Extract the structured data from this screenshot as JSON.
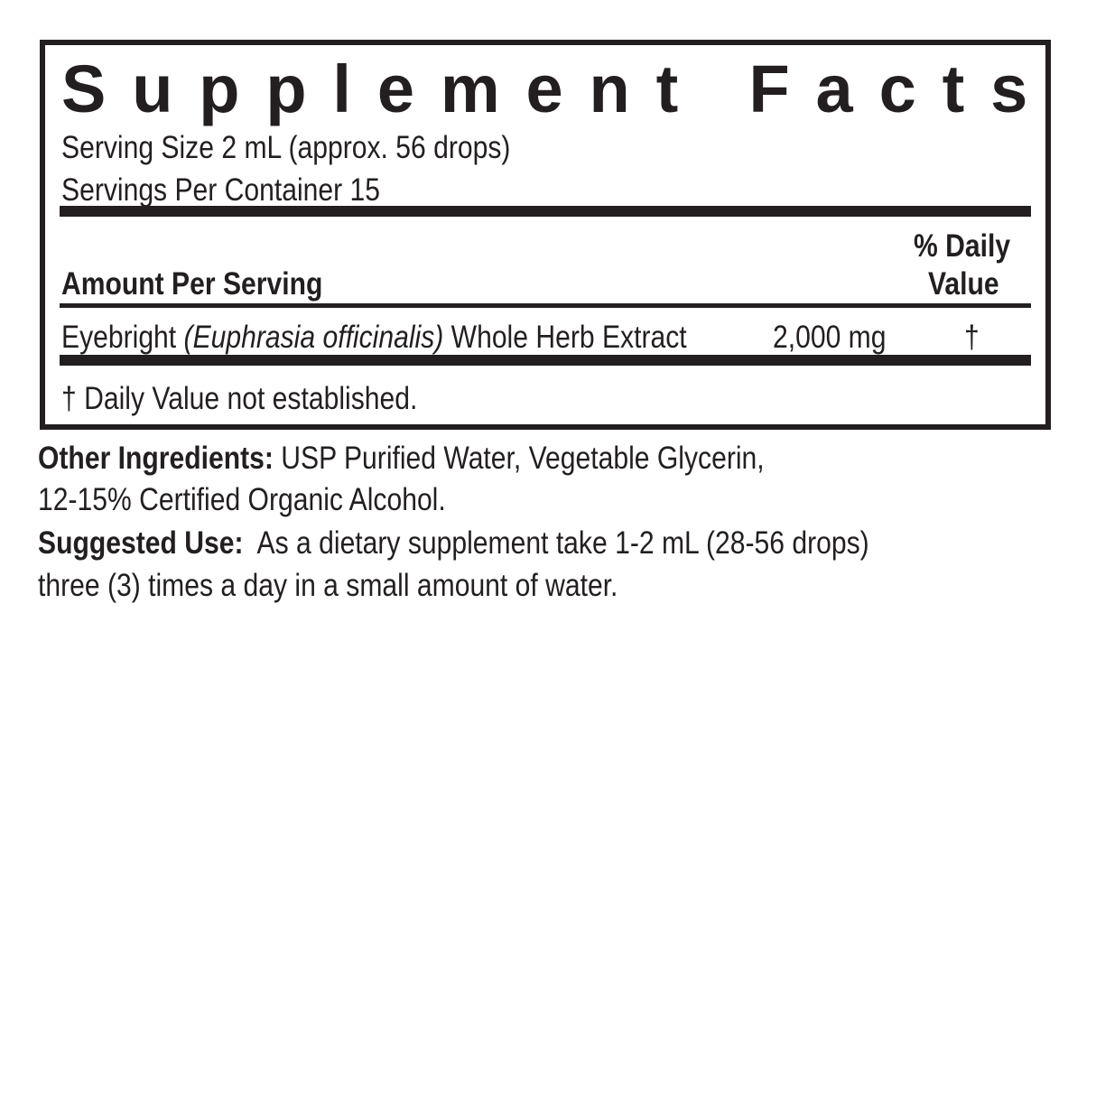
{
  "title": "Supplement Facts",
  "serving_size": "Serving Size 2 mL (approx. 56 drops)",
  "servings_per_container": "Servings Per Container 15",
  "header": {
    "amount_per_serving": "Amount Per Serving",
    "daily_value_line1": "% Daily",
    "daily_value_line2": "Value"
  },
  "ingredients": [
    {
      "name": "Eyebright",
      "latin": "(Euphrasia officinalis)",
      "part": "Whole Herb Extract",
      "amount": "2,000 mg",
      "dv": "†"
    }
  ],
  "footnote": "† Daily Value not established.",
  "other_ingredients": {
    "label": "Other Ingredients:",
    "line1": "USP Purified Water, Vegetable Glycerin,",
    "line2": "12-15% Certified Organic Alcohol."
  },
  "suggested_use": {
    "label": "Suggested Use:",
    "line1": "As a dietary supplement take 1-2 mL (28-56 drops)",
    "line2": "three (3) times a day in a small amount of water."
  }
}
